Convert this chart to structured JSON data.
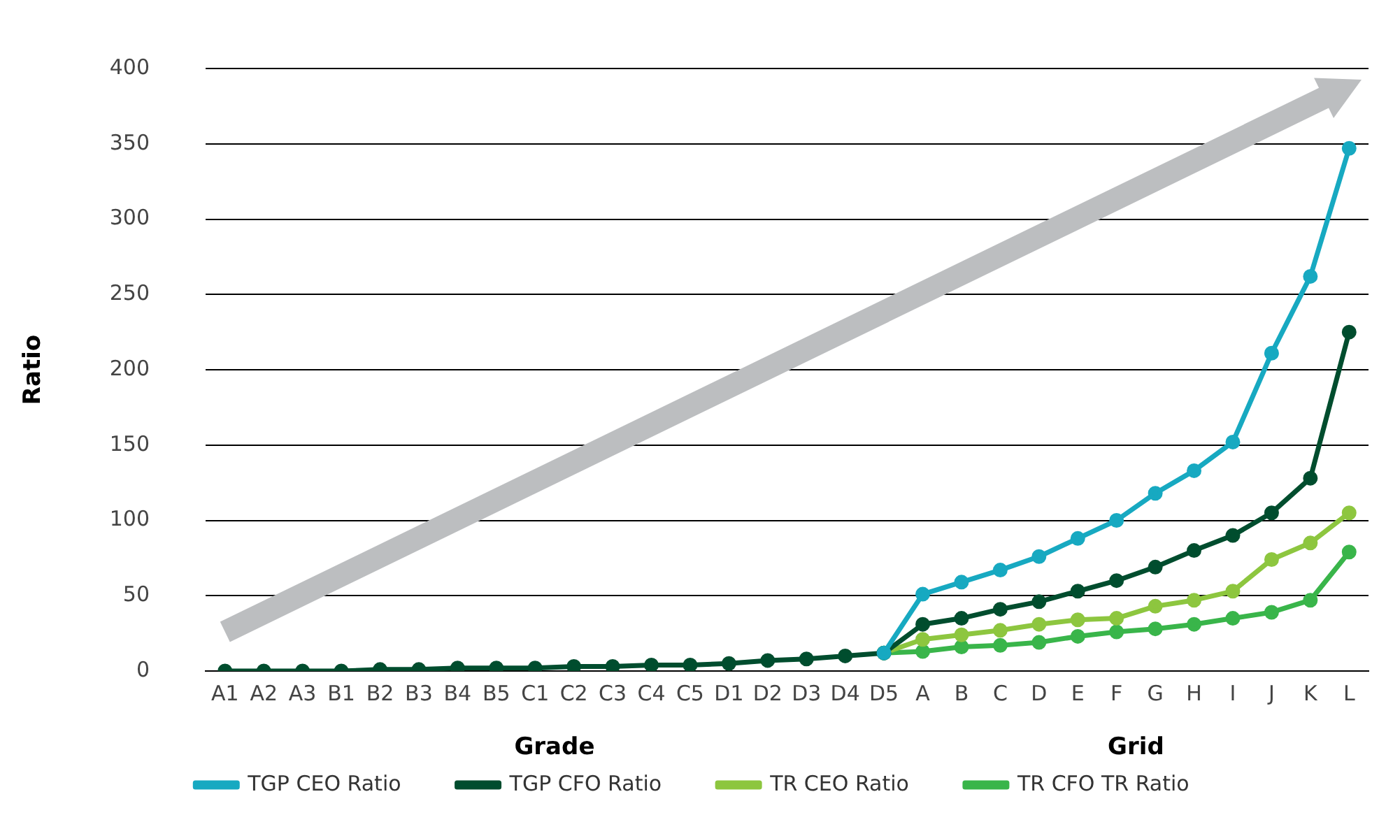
{
  "chart_data": {
    "type": "line",
    "xlabel": "Grade",
    "ylabel": "Ratio",
    "annotations": [
      "Grid"
    ],
    "categories": [
      "A1",
      "A2",
      "A3",
      "B1",
      "B2",
      "B3",
      "B4",
      "B5",
      "C1",
      "C2",
      "C3",
      "C4",
      "C5",
      "D1",
      "D2",
      "D3",
      "D4",
      "D5",
      "A",
      "B",
      "C",
      "D",
      "E",
      "F",
      "G",
      "H",
      "I",
      "J",
      "K",
      "L"
    ],
    "series": [
      {
        "name": "TGP CEO Ratio",
        "color": "#17a9c1",
        "values": [
          null,
          null,
          null,
          null,
          null,
          null,
          null,
          null,
          null,
          null,
          null,
          null,
          null,
          null,
          null,
          null,
          null,
          12,
          51,
          59,
          67,
          76,
          88,
          100,
          118,
          133,
          152,
          211,
          262,
          347
        ]
      },
      {
        "name": "TGP CFO Ratio",
        "color": "#004d2e",
        "values": [
          0,
          0,
          0,
          0,
          1,
          1,
          2,
          2,
          2,
          3,
          3,
          4,
          4,
          5,
          7,
          8,
          10,
          12,
          31,
          35,
          41,
          46,
          53,
          60,
          69,
          80,
          90,
          105,
          128,
          225
        ]
      },
      {
        "name": "TR CEO Ratio",
        "color": "#8dc63f",
        "values": [
          null,
          null,
          null,
          null,
          null,
          null,
          null,
          null,
          null,
          null,
          null,
          null,
          null,
          null,
          null,
          null,
          null,
          12,
          21,
          24,
          27,
          31,
          34,
          35,
          43,
          47,
          53,
          74,
          85,
          105
        ]
      },
      {
        "name": "TR CFO TR Ratio",
        "color": "#39b54a",
        "values": [
          null,
          null,
          null,
          null,
          null,
          null,
          null,
          null,
          null,
          null,
          null,
          null,
          null,
          null,
          null,
          null,
          null,
          12,
          13,
          16,
          17,
          19,
          23,
          26,
          28,
          31,
          35,
          39,
          47,
          79
        ]
      }
    ],
    "ylim": [
      0,
      400
    ],
    "yticks": [
      0,
      50,
      100,
      150,
      200,
      250,
      300,
      350,
      400
    ],
    "grid": "y",
    "legend": "bottom",
    "marker": "circle",
    "line_style": "solid"
  }
}
